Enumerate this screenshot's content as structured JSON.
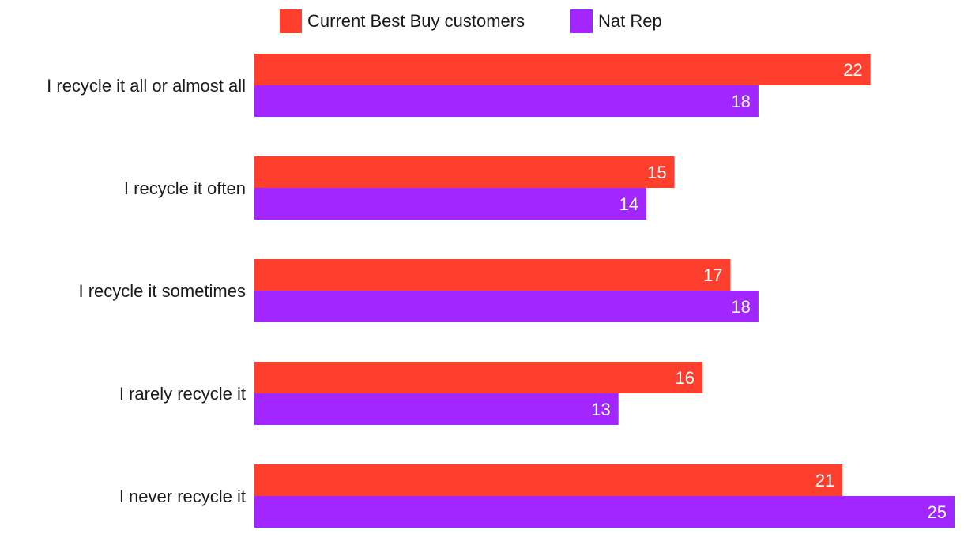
{
  "chart_data": {
    "type": "bar",
    "orientation": "horizontal",
    "title": "",
    "xlabel": "",
    "ylabel": "",
    "xlim": [
      0,
      25
    ],
    "grid": false,
    "legend_position": "top",
    "categories": [
      "I recycle it all or almost all",
      "I recycle it often",
      "I recycle it sometimes",
      "I rarely recycle it",
      "I never recycle it"
    ],
    "series": [
      {
        "name": "Current Best Buy customers",
        "color": "#FF3F2D",
        "values": [
          22,
          15,
          17,
          16,
          21
        ]
      },
      {
        "name": "Nat Rep",
        "color": "#A126FF",
        "values": [
          18,
          14,
          18,
          13,
          25
        ]
      }
    ]
  }
}
